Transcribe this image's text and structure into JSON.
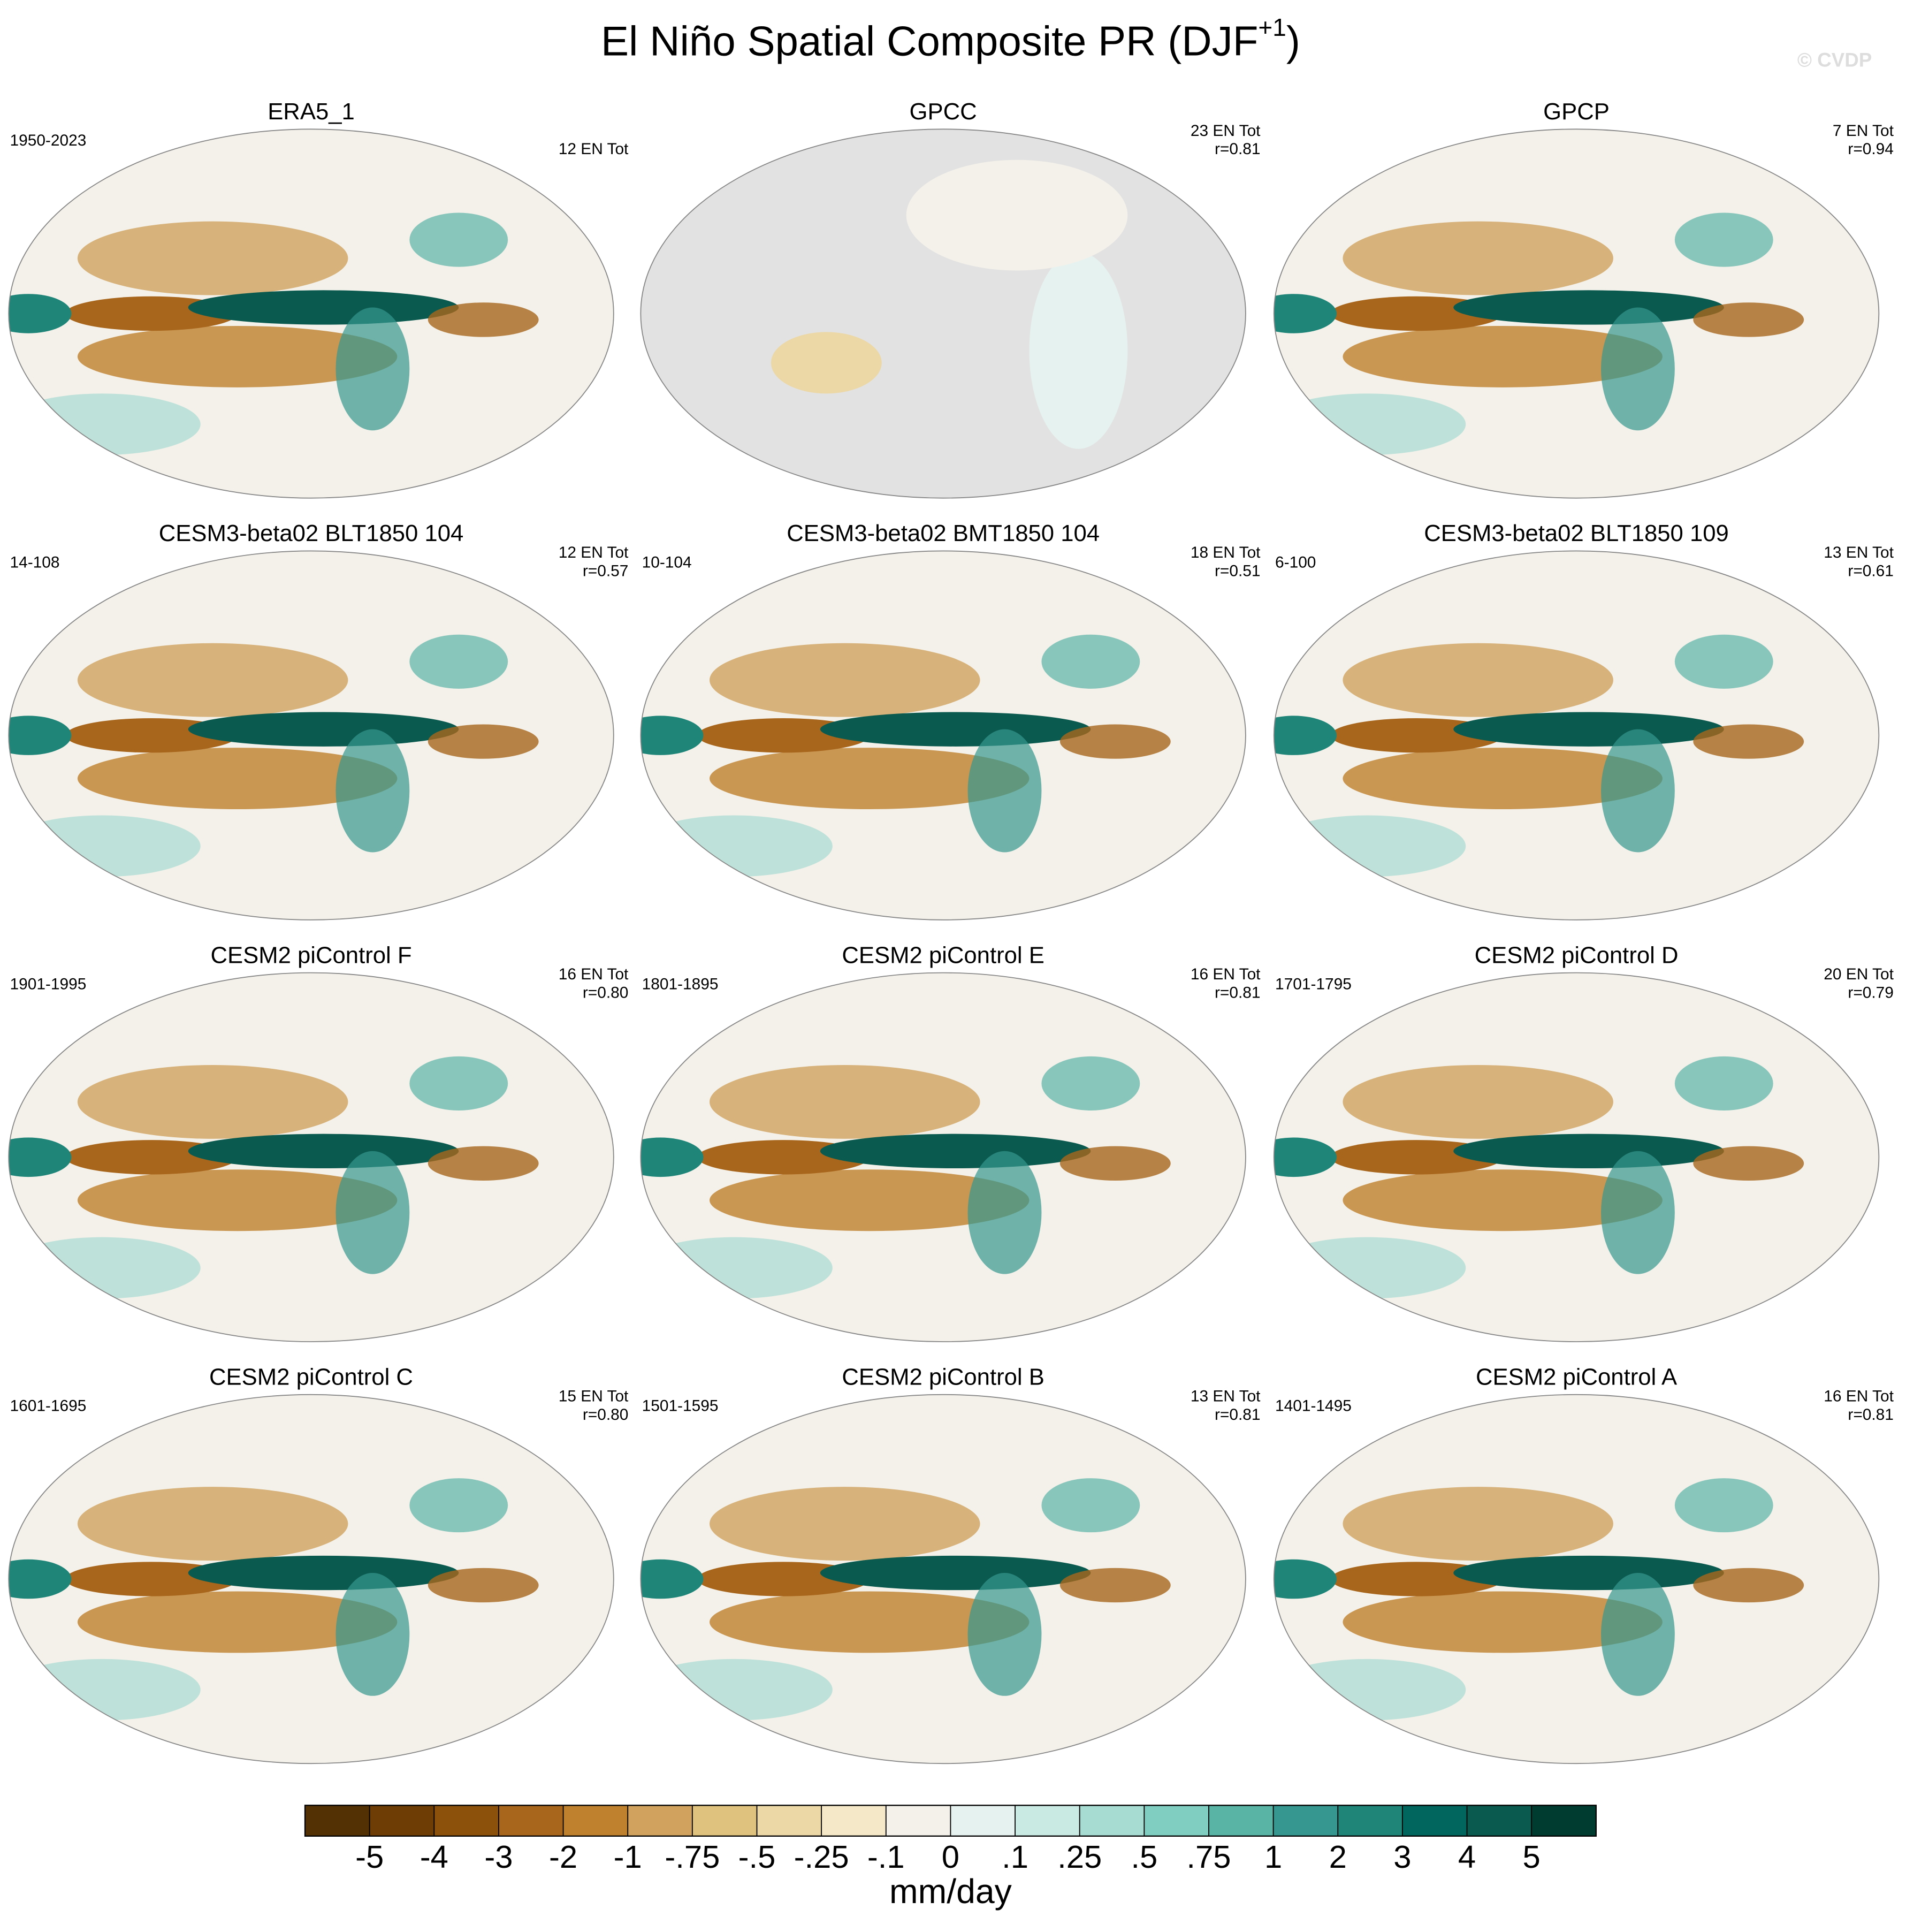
{
  "title": {
    "text": "El Niño Spatial Composite PR (DJF",
    "superscript": "+1",
    "close": ")"
  },
  "watermark": "© CVDP",
  "panels": [
    {
      "title": "ERA5_1",
      "period": "1950-2023",
      "events": "12 EN Tot"
    },
    {
      "title": "GPCC",
      "events": "23 EN Tot",
      "r": "r=0.81"
    },
    {
      "title": "GPCP",
      "events": "7 EN Tot",
      "r": "r=0.94"
    },
    {
      "title": "CESM3-beta02 BLT1850 104",
      "period": "14-108",
      "events": "12 EN Tot",
      "r": "r=0.57"
    },
    {
      "title": "CESM3-beta02 BMT1850 104",
      "period": "10-104",
      "events": "18 EN Tot",
      "r": "r=0.51"
    },
    {
      "title": "CESM3-beta02 BLT1850 109",
      "period": "6-100",
      "events": "13 EN Tot",
      "r": "r=0.61"
    },
    {
      "title": "CESM2 piControl F",
      "period": "1901-1995",
      "events": "16 EN Tot",
      "r": "r=0.80"
    },
    {
      "title": "CESM2 piControl E",
      "period": "1801-1895",
      "events": "16 EN Tot",
      "r": "r=0.81"
    },
    {
      "title": "CESM2 piControl D",
      "period": "1701-1795",
      "events": "20 EN Tot",
      "r": "r=0.79"
    },
    {
      "title": "CESM2 piControl C",
      "period": "1601-1695",
      "events": "15 EN Tot",
      "r": "r=0.80"
    },
    {
      "title": "CESM2 piControl B",
      "period": "1501-1595",
      "events": "13 EN Tot",
      "r": "r=0.81"
    },
    {
      "title": "CESM2 piControl A",
      "period": "1401-1495",
      "events": "16 EN Tot",
      "r": "r=0.81"
    }
  ],
  "colorbar": {
    "label": "mm/day",
    "colors": [
      "#543005",
      "#6e3d06",
      "#8c510a",
      "#a8661c",
      "#bf812d",
      "#d0a25e",
      "#dfc27d",
      "#ecd8a6",
      "#f4e8c8",
      "#f4f1ea",
      "#e6f2ef",
      "#c9e9e3",
      "#a6dcd2",
      "#80cdc1",
      "#5ab4a6",
      "#35978f",
      "#1f8579",
      "#01665e",
      "#0b5a4f",
      "#003c30"
    ],
    "ticks": [
      -5,
      -4,
      -3,
      -2,
      -1,
      {
        "value": -0.75,
        "label": "-.75"
      },
      {
        "value": -0.5,
        "label": "-.5"
      },
      {
        "value": -0.25,
        "label": "-.25"
      },
      {
        "value": -0.1,
        "label": "-.1"
      },
      0,
      {
        "value": 0.1,
        "label": ".1"
      },
      {
        "value": 0.25,
        "label": ".25"
      },
      {
        "value": 0.5,
        "label": ".5"
      },
      {
        "value": 0.75,
        "label": ".75"
      },
      1,
      2,
      3,
      4,
      5
    ]
  }
}
